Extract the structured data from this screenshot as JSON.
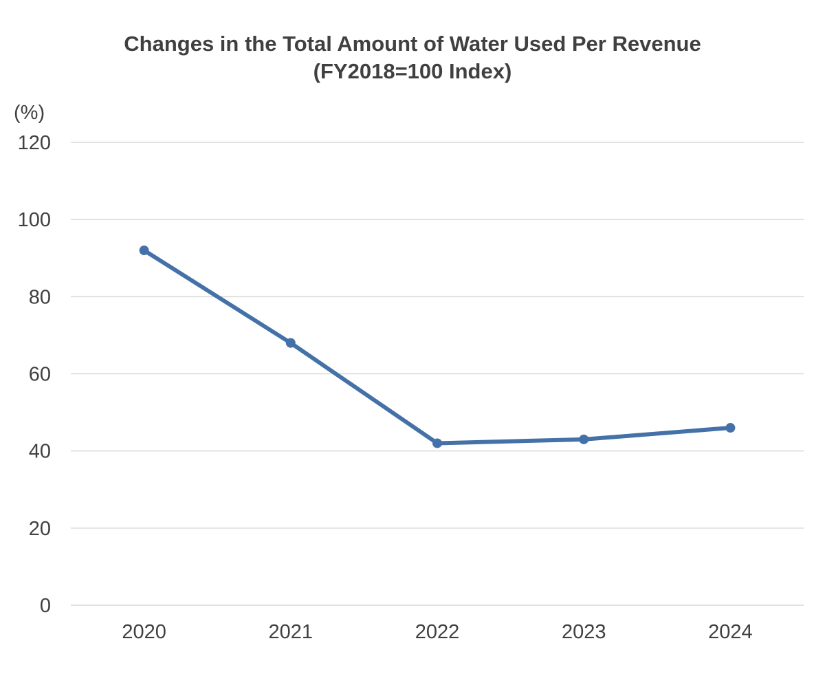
{
  "chart_data": {
    "type": "line",
    "title": "Changes in the Total Amount of Water Used Per Revenue",
    "subtitle": "(FY2018=100 Index)",
    "ylabel": "(%)",
    "xlabel": "",
    "categories": [
      "2020",
      "2021",
      "2022",
      "2023",
      "2024"
    ],
    "series": [
      {
        "name": "Total Amount of Water Used Per Revenue",
        "values": [
          92,
          68,
          42,
          43,
          46
        ],
        "color": "#4472a8"
      }
    ],
    "ylim": [
      0,
      120
    ],
    "yticks": [
      0,
      20,
      40,
      60,
      80,
      100,
      120
    ],
    "grid": true,
    "legend": "none"
  }
}
